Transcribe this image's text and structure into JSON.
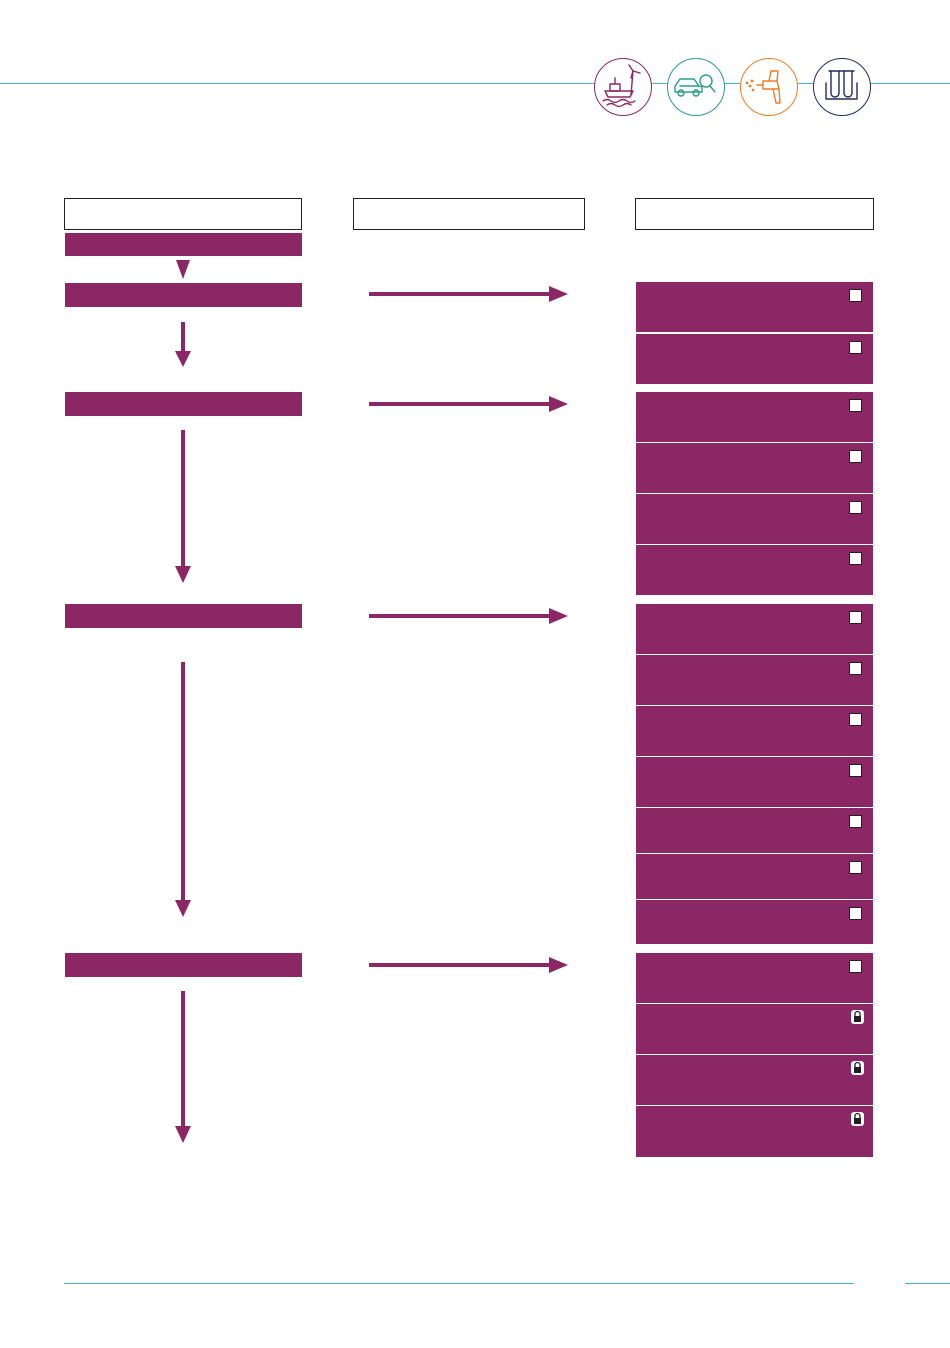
{
  "colors": {
    "primary": "#8c2765",
    "rule": "#4bb1c4",
    "icon_purple": "#8c2765",
    "icon_teal": "#2a9d8f",
    "icon_orange": "#ef7d22",
    "icon_navy": "#232b5e"
  },
  "header_icons": [
    {
      "name": "offshore-wind-ship-icon"
    },
    {
      "name": "car-search-icon"
    },
    {
      "name": "spray-gun-icon"
    },
    {
      "name": "test-tubes-icon"
    }
  ],
  "column_headers": [
    "",
    "",
    ""
  ],
  "stages": [
    "",
    "",
    "",
    "",
    ""
  ],
  "tasks": [
    {
      "label": "",
      "marker": "checkbox-icon"
    },
    {
      "label": "",
      "marker": "checkbox-icon"
    },
    {
      "label": "",
      "marker": "checkbox-icon"
    },
    {
      "label": "",
      "marker": "checkbox-icon"
    },
    {
      "label": "",
      "marker": "checkbox-icon"
    },
    {
      "label": "",
      "marker": "checkbox-icon"
    },
    {
      "label": "",
      "marker": "checkbox-icon"
    },
    {
      "label": "",
      "marker": "checkbox-icon"
    },
    {
      "label": "",
      "marker": "checkbox-icon"
    },
    {
      "label": "",
      "marker": "checkbox-icon"
    },
    {
      "label": "",
      "marker": "checkbox-icon"
    },
    {
      "label": "",
      "marker": "checkbox-icon"
    },
    {
      "label": "",
      "marker": "checkbox-icon"
    },
    {
      "label": "",
      "marker": "checkbox-icon"
    },
    {
      "label": "",
      "marker": "lock-icon"
    },
    {
      "label": "",
      "marker": "lock-icon"
    },
    {
      "label": "",
      "marker": "lock-icon"
    }
  ]
}
